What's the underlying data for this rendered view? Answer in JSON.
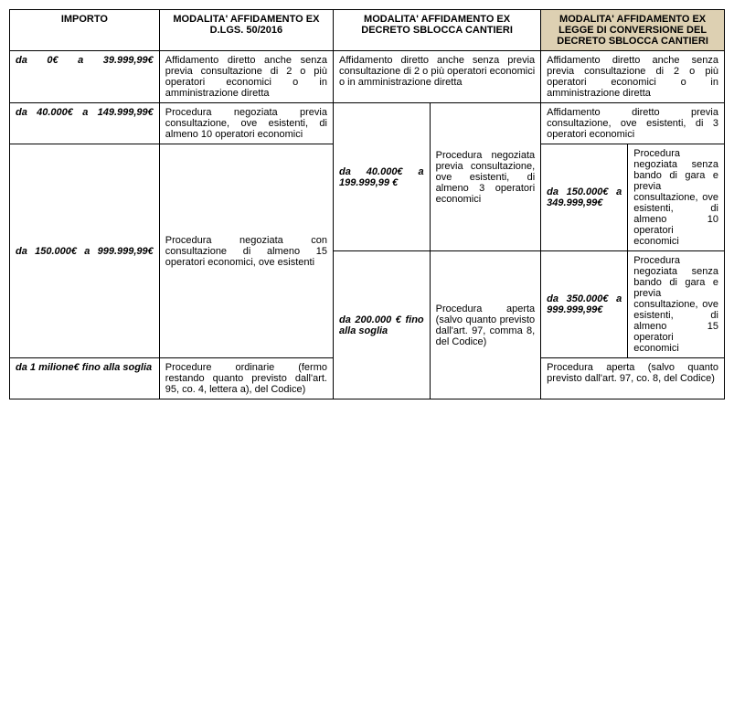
{
  "headers": {
    "importo": "IMPORTO",
    "dlgs": "MODALITA' AFFIDAMENTO EX D.LGS. 50/2016",
    "sblocca": "MODALITA' AFFIDAMENTO EX DECRETO SBLOCCA CANTIERI",
    "legge": "MODALITA' AFFIDAMENTO EX LEGGE DI CONVERSIONE DEL DECRETO SBLOCCA CANTIERI"
  },
  "rows": {
    "r1": {
      "importo": "da 0€ a 39.999,99€",
      "dlgs": "Affidamento diretto anche senza previa consultazione di 2 o più operatori economici o in amministrazione diretta",
      "sblocca": "Affidamento diretto anche senza previa consultazione di 2 o più operatori economici o in amministrazione diretta",
      "legge": "Affidamento diretto anche senza previa consultazione di 2 o più operatori economici o in amministrazione diretta"
    },
    "r2": {
      "importo": "da 40.000€ a 149.999,99€",
      "dlgs": "Procedura negoziata previa consultazione, ove esistenti, di almeno 10 operatori economici",
      "legge": "Affidamento diretto previa consultazione, ove esistenti, di 3 operatori economici"
    },
    "r3": {
      "importo": "da 150.000€ a 999.999,99€",
      "dlgs": "Procedura negoziata con consultazione di almeno 15 operatori economici, ove esistenti",
      "sblocca_a_range": "da 40.000€ a 199.999,99 €",
      "sblocca_a_text": "Procedura negoziata previa consultazione, ove esistenti, di almeno 3 operatori economici",
      "legge_a_range": "da 150.000€ a 349.999,99€",
      "legge_a_text": "Procedura negoziata senza bando di gara e previa consultazione, ove esistenti, di almeno 10 operatori economici",
      "sblocca_b_range": "da 200.000 € fino alla soglia",
      "sblocca_b_text": "Procedura aperta (salvo quanto previsto dall'art. 97, comma 8, del Codice)",
      "legge_b_range": "da 350.000€ a 999.999,99€",
      "legge_b_text": "Procedura negoziata senza bando di gara e previa consultazione, ove esistenti, di almeno 15 operatori economici"
    },
    "r4": {
      "importo": "da 1 milione€ fino alla soglia",
      "dlgs": "Procedure ordinarie (fermo restando quanto previsto dall'art. 95, co. 4, lettera a), del Codice)",
      "legge": "Procedura aperta (salvo quanto previsto dall'art. 97, co. 8, del Codice)"
    }
  }
}
